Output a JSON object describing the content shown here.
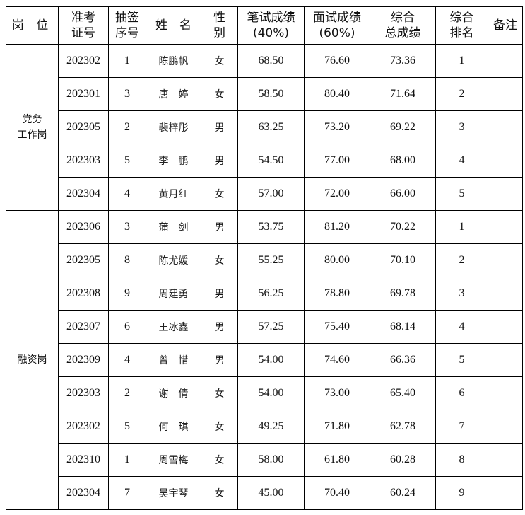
{
  "headers": [
    "岗 位",
    "准考\n证号",
    "抽签\n序号",
    "姓　名",
    "性\n别",
    "笔试成绩\n(40%)",
    "面试成绩\n(60%)",
    "综合\n总成绩",
    "综合\n排名",
    "备注"
  ],
  "groups": [
    {
      "post": "党务工作岗",
      "rows": [
        [
          "202302",
          "1",
          "陈鹏帆",
          "女",
          "68.50",
          "76.60",
          "73.36",
          "1",
          ""
        ],
        [
          "202301",
          "3",
          "唐婷",
          "女",
          "58.50",
          "80.40",
          "71.64",
          "2",
          ""
        ],
        [
          "202305",
          "2",
          "裴梓彤",
          "男",
          "63.25",
          "73.20",
          "69.22",
          "3",
          ""
        ],
        [
          "202303",
          "5",
          "李鹏",
          "男",
          "54.50",
          "77.00",
          "68.00",
          "4",
          ""
        ],
        [
          "202304",
          "4",
          "黄月红",
          "女",
          "57.00",
          "72.00",
          "66.00",
          "5",
          ""
        ]
      ]
    },
    {
      "post": "融资岗",
      "rows": [
        [
          "202306",
          "3",
          "蒲剑",
          "男",
          "53.75",
          "81.20",
          "70.22",
          "1",
          ""
        ],
        [
          "202305",
          "8",
          "陈尤媛",
          "女",
          "55.25",
          "80.00",
          "70.10",
          "2",
          ""
        ],
        [
          "202308",
          "9",
          "周建勇",
          "男",
          "56.25",
          "78.80",
          "69.78",
          "3",
          ""
        ],
        [
          "202307",
          "6",
          "王冰鑫",
          "男",
          "57.25",
          "75.40",
          "68.14",
          "4",
          ""
        ],
        [
          "202309",
          "4",
          "曾惜",
          "男",
          "54.00",
          "74.60",
          "66.36",
          "5",
          ""
        ],
        [
          "202303",
          "2",
          "谢倩",
          "女",
          "54.00",
          "73.00",
          "65.40",
          "6",
          ""
        ],
        [
          "202302",
          "5",
          "何琪",
          "女",
          "49.25",
          "71.80",
          "62.78",
          "7",
          ""
        ],
        [
          "202310",
          "1",
          "周雪梅",
          "女",
          "58.00",
          "61.80",
          "60.28",
          "8",
          ""
        ],
        [
          "202304",
          "7",
          "吴宇琴",
          "女",
          "45.00",
          "70.40",
          "60.24",
          "9",
          ""
        ]
      ]
    }
  ]
}
